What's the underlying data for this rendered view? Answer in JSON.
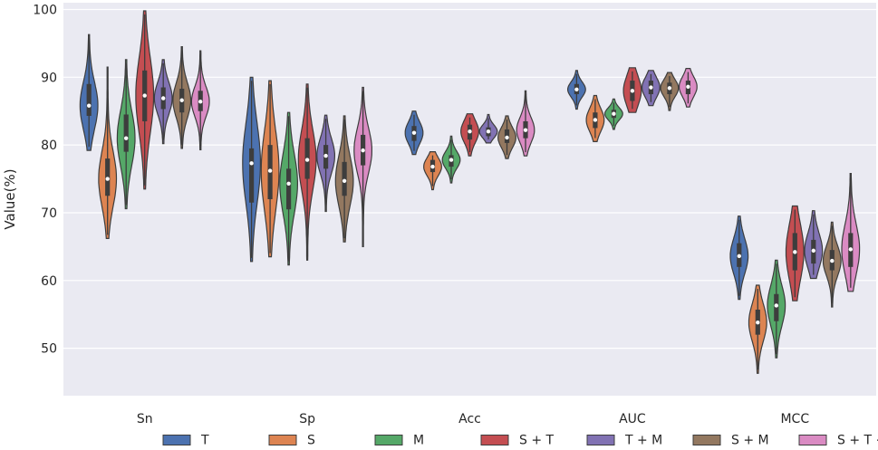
{
  "chart_data": {
    "type": "violin",
    "title": "",
    "xlabel": "",
    "ylabel": "Value(%)",
    "ylim": [
      43,
      101
    ],
    "yticks": [
      50,
      60,
      70,
      80,
      90,
      100
    ],
    "categories": [
      "Sn",
      "Sp",
      "Acc",
      "AUC",
      "MCC"
    ],
    "grid": true,
    "legend_position": "bottom",
    "background": "#eaeaf2",
    "series": [
      {
        "name": "T",
        "color": "#4c72b0",
        "stats": [
          {
            "min": 79.2,
            "max": 96.3,
            "q1": 84.3,
            "q3": 89.0,
            "median": 85.8
          },
          {
            "min": 62.8,
            "max": 90.0,
            "q1": 71.5,
            "q3": 79.5,
            "median": 77.3
          },
          {
            "min": 78.6,
            "max": 85.0,
            "q1": 80.6,
            "q3": 82.8,
            "median": 81.8
          },
          {
            "min": 85.3,
            "max": 91.0,
            "q1": 87.5,
            "q3": 89.0,
            "median": 88.2
          },
          {
            "min": 57.2,
            "max": 69.5,
            "q1": 62.0,
            "q3": 65.5,
            "median": 63.6
          }
        ]
      },
      {
        "name": "S",
        "color": "#dd8452",
        "stats": [
          {
            "min": 66.2,
            "max": 91.5,
            "q1": 72.5,
            "q3": 78.0,
            "median": 75.0
          },
          {
            "min": 63.5,
            "max": 89.5,
            "q1": 72.0,
            "q3": 80.0,
            "median": 76.2
          },
          {
            "min": 73.4,
            "max": 79.0,
            "q1": 76.0,
            "q3": 77.8,
            "median": 76.8
          },
          {
            "min": 80.5,
            "max": 87.3,
            "q1": 82.5,
            "q3": 84.8,
            "median": 83.7
          },
          {
            "min": 46.3,
            "max": 59.3,
            "q1": 52.0,
            "q3": 55.7,
            "median": 53.8
          }
        ]
      },
      {
        "name": "M",
        "color": "#55a868",
        "stats": [
          {
            "min": 70.6,
            "max": 92.6,
            "q1": 79.0,
            "q3": 84.5,
            "median": 81.0
          },
          {
            "min": 62.3,
            "max": 84.8,
            "q1": 70.5,
            "q3": 76.5,
            "median": 74.3
          },
          {
            "min": 74.4,
            "max": 81.3,
            "q1": 76.8,
            "q3": 78.5,
            "median": 77.8
          },
          {
            "min": 82.3,
            "max": 86.8,
            "q1": 84.0,
            "q3": 85.2,
            "median": 84.6
          },
          {
            "min": 48.6,
            "max": 63.0,
            "q1": 54.0,
            "q3": 58.0,
            "median": 56.3
          }
        ]
      },
      {
        "name": "S + T",
        "color": "#c44e52",
        "stats": [
          {
            "min": 73.5,
            "max": 99.8,
            "q1": 83.5,
            "q3": 91.0,
            "median": 87.3
          },
          {
            "min": 63.0,
            "max": 89.0,
            "q1": 75.0,
            "q3": 81.0,
            "median": 77.8
          },
          {
            "min": 78.4,
            "max": 84.6,
            "q1": 80.8,
            "q3": 83.0,
            "median": 82.0
          },
          {
            "min": 84.8,
            "max": 91.4,
            "q1": 86.5,
            "q3": 89.5,
            "median": 88.0
          },
          {
            "min": 57.0,
            "max": 71.0,
            "q1": 61.5,
            "q3": 67.0,
            "median": 64.2
          }
        ]
      },
      {
        "name": "T + M",
        "color": "#8172b3",
        "stats": [
          {
            "min": 80.2,
            "max": 92.6,
            "q1": 85.3,
            "q3": 88.5,
            "median": 86.9
          },
          {
            "min": 70.2,
            "max": 84.4,
            "q1": 76.5,
            "q3": 80.0,
            "median": 78.4
          },
          {
            "min": 80.3,
            "max": 84.5,
            "q1": 81.3,
            "q3": 82.6,
            "median": 82.0
          },
          {
            "min": 85.8,
            "max": 91.0,
            "q1": 87.5,
            "q3": 89.5,
            "median": 88.5
          },
          {
            "min": 60.3,
            "max": 70.3,
            "q1": 62.5,
            "q3": 66.0,
            "median": 64.4
          }
        ]
      },
      {
        "name": "S + M",
        "color": "#937860",
        "stats": [
          {
            "min": 79.5,
            "max": 94.5,
            "q1": 84.8,
            "q3": 88.3,
            "median": 86.6
          },
          {
            "min": 65.7,
            "max": 84.3,
            "q1": 72.5,
            "q3": 77.5,
            "median": 74.7
          },
          {
            "min": 78.0,
            "max": 84.3,
            "q1": 80.3,
            "q3": 82.3,
            "median": 81.1
          },
          {
            "min": 85.1,
            "max": 90.7,
            "q1": 87.5,
            "q3": 89.2,
            "median": 88.4
          },
          {
            "min": 56.1,
            "max": 68.6,
            "q1": 61.5,
            "q3": 64.5,
            "median": 62.9
          }
        ]
      },
      {
        "name": "S + T + M",
        "color": "#da8bc3",
        "stats": [
          {
            "min": 79.3,
            "max": 93.9,
            "q1": 85.0,
            "q3": 88.0,
            "median": 86.4
          },
          {
            "min": 65.0,
            "max": 88.5,
            "q1": 77.0,
            "q3": 81.5,
            "median": 79.2
          },
          {
            "min": 78.4,
            "max": 88.0,
            "q1": 81.0,
            "q3": 83.5,
            "median": 82.2
          },
          {
            "min": 85.6,
            "max": 91.3,
            "q1": 87.5,
            "q3": 89.5,
            "median": 88.6
          },
          {
            "min": 58.4,
            "max": 75.8,
            "q1": 62.0,
            "q3": 67.0,
            "median": 64.6
          }
        ]
      }
    ]
  }
}
